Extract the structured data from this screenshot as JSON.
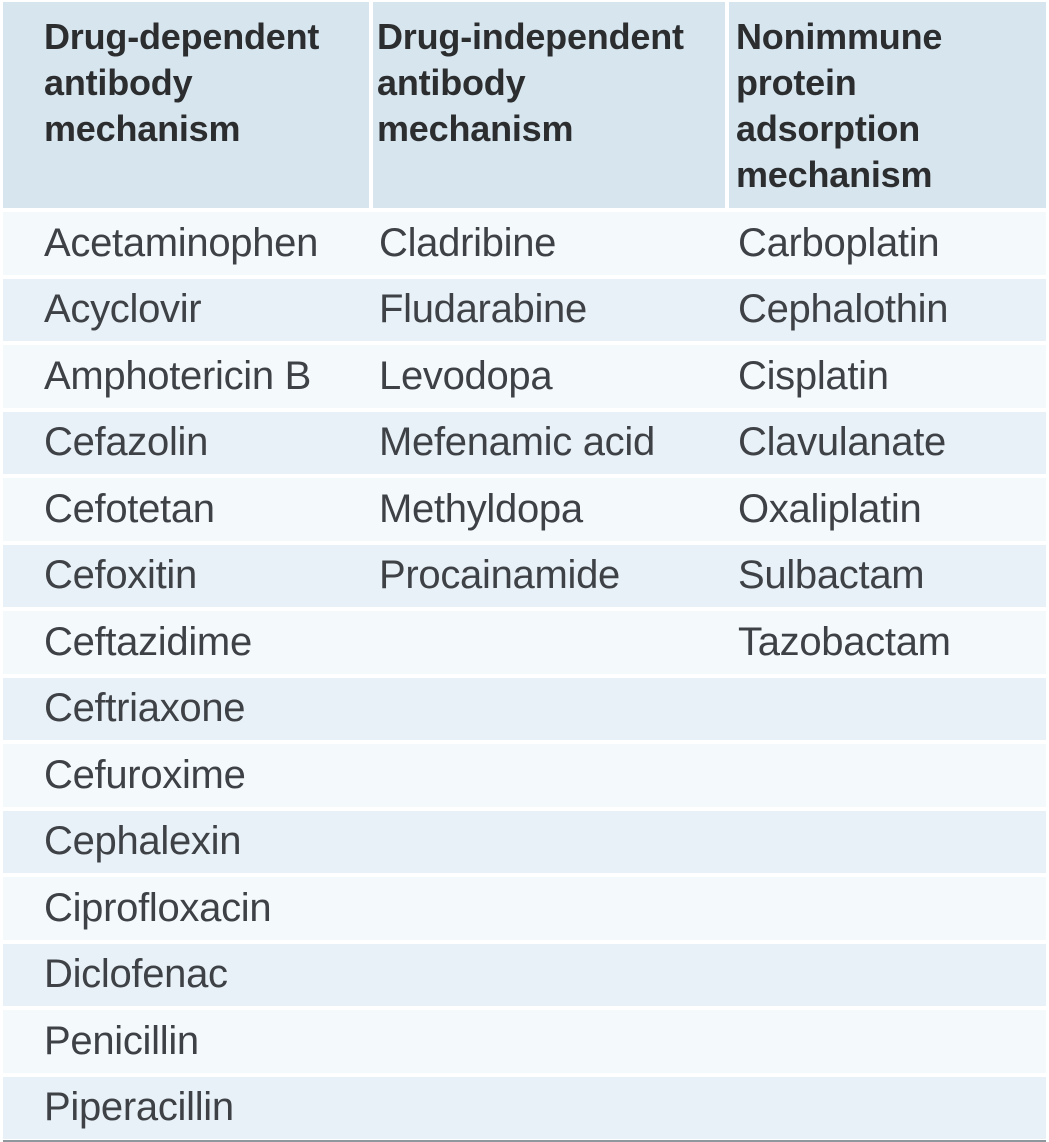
{
  "colors": {
    "header-bg": "#d7e5ef",
    "row-light": "#f4f9fc",
    "row-blue": "#e8f1f7",
    "divider": "#ffffff",
    "bottom-border": "#8e979e",
    "header-text": "#2b2d2f",
    "body-text": "#3e4247",
    "page-bg": "#ffffff"
  },
  "table": {
    "columns": [
      {
        "id": "drug-dependent-antibody",
        "header": "Drug-dependent\nantibody\nmechanism",
        "drugs": [
          "Acetaminophen",
          "Acyclovir",
          "Amphotericin B",
          "Cefazolin",
          "Cefotetan",
          "Cefoxitin",
          "Ceftazidime",
          "Ceftriaxone",
          "Cefuroxime",
          "Cephalexin",
          "Ciprofloxacin",
          "Diclofenac",
          "Penicillin",
          "Piperacillin"
        ]
      },
      {
        "id": "drug-independent-antibody",
        "header": "Drug-independent\nantibody\nmechanism",
        "drugs": [
          "Cladribine",
          "Fludarabine",
          "Levodopa",
          "Mefenamic acid",
          "Methyldopa",
          "Procainamide"
        ]
      },
      {
        "id": "nonimmune-protein-adsorption",
        "header": "Nonimmune\nprotein\nadsorption\nmechanism",
        "drugs": [
          "Carboplatin",
          "Cephalothin",
          "Cisplatin",
          "Clavulanate",
          "Oxaliplatin",
          "Sulbactam",
          "Tazobactam"
        ]
      }
    ]
  }
}
